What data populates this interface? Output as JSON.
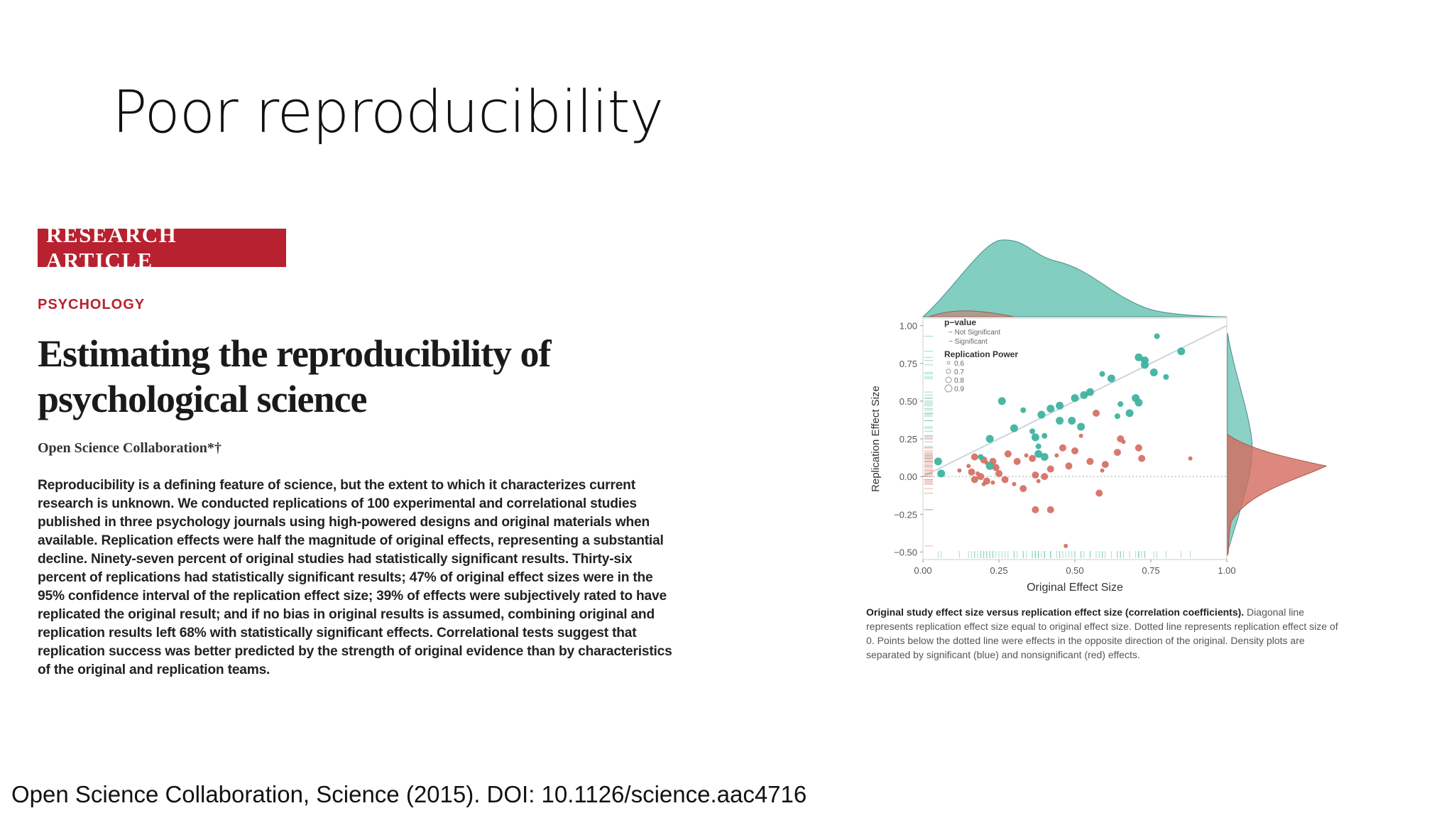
{
  "slide": {
    "title": "Poor reproducibility",
    "citation": "Open Science Collaboration, Science (2015). DOI: 10.1126/science.aac4716"
  },
  "article": {
    "badge": "RESEARCH ARTICLE",
    "section": "PSYCHOLOGY",
    "title_line1": "Estimating the reproducibility of",
    "title_line2": "psychological science",
    "authors": "Open Science Collaboration*†",
    "abstract": "Reproducibility is a defining feature of science, but the extent to which it characterizes current research is unknown. We conducted replications of 100 experimental and correlational studies published in three psychology journals using high-powered designs and original materials when available. Replication effects were half the magnitude of original effects, representing a substantial decline. Ninety-seven percent of original studies had statistically significant results. Thirty-six percent of replications had statistically significant results; 47% of original effect sizes were in the 95% confidence interval of the replication effect size; 39% of effects were subjectively rated to have replicated the original result; and if no bias in original results is assumed, combining original and replication results left 68% with statistically significant effects. Correlational tests suggest that replication success was better predicted by the strength of original evidence than by characteristics of the original and replication teams."
  },
  "figure": {
    "caption_bold": "Original study effect size versus replication effect size (correlation coefficients).",
    "caption_rest": " Diagonal line represents replication effect size equal to original effect size. Dotted line represents replication effect size of 0. Points below the dotted line were effects in the opposite direction of the original. Density plots are separated by significant (blue) and nonsignificant (red) effects."
  },
  "chart_data": {
    "type": "scatter",
    "title": "",
    "xlabel": "Original Effect Size",
    "ylabel": "Replication Effect Size",
    "xlim": [
      0,
      1.0
    ],
    "ylim": [
      -0.55,
      1.05
    ],
    "x_ticks": [
      "0.00",
      "0.25",
      "0.50",
      "0.75",
      "1.00"
    ],
    "y_ticks": [
      "1.00",
      "0.75",
      "0.50",
      "0.25",
      "0.00",
      "−0.25",
      "−0.50"
    ],
    "legend": {
      "pvalue_title": "p−value",
      "pvalue_items": [
        "Not Significant",
        "Significant"
      ],
      "power_title": "Replication Power",
      "power_items": [
        "0.6",
        "0.7",
        "0.8",
        "0.9"
      ],
      "position": "top-left"
    },
    "colors": {
      "significant": "#3fb3a0",
      "not_significant": "#d46a5e"
    },
    "series": [
      {
        "name": "Significant",
        "points": [
          [
            0.77,
            0.93
          ],
          [
            0.85,
            0.83
          ],
          [
            0.71,
            0.79
          ],
          [
            0.73,
            0.77
          ],
          [
            0.59,
            0.68
          ],
          [
            0.62,
            0.65
          ],
          [
            0.76,
            0.69
          ],
          [
            0.73,
            0.74
          ],
          [
            0.8,
            0.66
          ],
          [
            0.55,
            0.56
          ],
          [
            0.5,
            0.52
          ],
          [
            0.53,
            0.54
          ],
          [
            0.65,
            0.48
          ],
          [
            0.7,
            0.52
          ],
          [
            0.71,
            0.49
          ],
          [
            0.26,
            0.5
          ],
          [
            0.33,
            0.44
          ],
          [
            0.39,
            0.41
          ],
          [
            0.42,
            0.45
          ],
          [
            0.45,
            0.47
          ],
          [
            0.36,
            0.3
          ],
          [
            0.45,
            0.37
          ],
          [
            0.49,
            0.37
          ],
          [
            0.52,
            0.33
          ],
          [
            0.64,
            0.4
          ],
          [
            0.68,
            0.42
          ],
          [
            0.22,
            0.25
          ],
          [
            0.3,
            0.32
          ],
          [
            0.4,
            0.27
          ],
          [
            0.37,
            0.26
          ],
          [
            0.38,
            0.15
          ],
          [
            0.4,
            0.13
          ],
          [
            0.19,
            0.13
          ],
          [
            0.22,
            0.07
          ],
          [
            0.05,
            0.1
          ],
          [
            0.06,
            0.02
          ],
          [
            0.38,
            0.2
          ]
        ]
      },
      {
        "name": "Not Significant",
        "points": [
          [
            0.15,
            0.07
          ],
          [
            0.17,
            0.13
          ],
          [
            0.2,
            0.11
          ],
          [
            0.21,
            0.09
          ],
          [
            0.23,
            0.1
          ],
          [
            0.16,
            0.03
          ],
          [
            0.18,
            0.02
          ],
          [
            0.19,
            0.0
          ],
          [
            0.21,
            -0.03
          ],
          [
            0.23,
            -0.04
          ],
          [
            0.24,
            0.06
          ],
          [
            0.17,
            -0.02
          ],
          [
            0.2,
            -0.05
          ],
          [
            0.25,
            0.02
          ],
          [
            0.27,
            -0.02
          ],
          [
            0.3,
            -0.05
          ],
          [
            0.33,
            -0.08
          ],
          [
            0.31,
            0.1
          ],
          [
            0.34,
            0.14
          ],
          [
            0.36,
            0.12
          ],
          [
            0.37,
            0.01
          ],
          [
            0.38,
            -0.03
          ],
          [
            0.4,
            0.0
          ],
          [
            0.42,
            0.05
          ],
          [
            0.44,
            0.14
          ],
          [
            0.46,
            0.19
          ],
          [
            0.5,
            0.17
          ],
          [
            0.52,
            0.27
          ],
          [
            0.55,
            0.1
          ],
          [
            0.6,
            0.08
          ],
          [
            0.59,
            0.04
          ],
          [
            0.64,
            0.16
          ],
          [
            0.65,
            0.25
          ],
          [
            0.66,
            0.23
          ],
          [
            0.71,
            0.19
          ],
          [
            0.72,
            0.12
          ],
          [
            0.88,
            0.12
          ],
          [
            0.37,
            -0.22
          ],
          [
            0.42,
            -0.22
          ],
          [
            0.47,
            -0.46
          ],
          [
            0.58,
            -0.11
          ],
          [
            0.57,
            0.42
          ],
          [
            0.12,
            0.04
          ],
          [
            0.28,
            0.15
          ],
          [
            0.48,
            0.07
          ]
        ]
      }
    ]
  }
}
